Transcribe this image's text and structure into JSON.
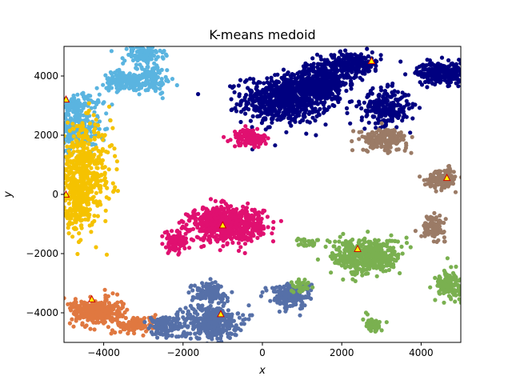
{
  "chart_data": {
    "type": "scatter",
    "title": "K-means medoid",
    "xlabel": "x",
    "ylabel": "y",
    "xlim": [
      -5000,
      5000
    ],
    "ylim": [
      -5000,
      5000
    ],
    "xticks": [
      -4000,
      -2000,
      0,
      2000,
      4000
    ],
    "yticks": [
      -4000,
      -2000,
      0,
      2000,
      4000
    ],
    "grid": false,
    "legend": "none",
    "marker_color": "#ffff00",
    "marker_edge": "#cc0000",
    "clusters": [
      {
        "color": "#000080",
        "blobs": [
          [
            600,
            3200,
            550,
            400,
            700
          ],
          [
            1450,
            3750,
            350,
            280,
            350
          ],
          [
            2200,
            4400,
            400,
            200,
            250
          ],
          [
            3100,
            2950,
            300,
            300,
            250
          ],
          [
            4500,
            4100,
            300,
            180,
            250
          ]
        ],
        "medoid": [
          2750,
          4500
        ]
      },
      {
        "color": "#5ab4e0",
        "blobs": [
          [
            -4700,
            2100,
            300,
            350,
            220
          ],
          [
            -3500,
            3850,
            250,
            150,
            150
          ],
          [
            -2800,
            3900,
            250,
            250,
            120
          ],
          [
            -3000,
            4750,
            250,
            200,
            120
          ],
          [
            -4700,
            3000,
            300,
            200,
            120
          ]
        ],
        "medoid": [
          -4950,
          3200
        ]
      },
      {
        "color": "#f5c200",
        "blobs": [
          [
            -4500,
            700,
            350,
            800,
            500
          ],
          [
            -4700,
            -300,
            200,
            500,
            150
          ]
        ],
        "medoid": [
          -4950,
          -10
        ]
      },
      {
        "color": "#e01070",
        "blobs": [
          [
            -900,
            -1000,
            450,
            280,
            700
          ],
          [
            -2200,
            -1600,
            140,
            150,
            100
          ],
          [
            -300,
            1900,
            220,
            150,
            120
          ]
        ],
        "medoid": [
          -1000,
          -1050
        ]
      },
      {
        "color": "#9b7b66",
        "blobs": [
          [
            3050,
            1850,
            300,
            180,
            180
          ],
          [
            4550,
            550,
            200,
            160,
            120
          ],
          [
            4300,
            -1100,
            150,
            180,
            100
          ]
        ],
        "medoid": [
          4650,
          550
        ]
      },
      {
        "color": "#e07840",
        "blobs": [
          [
            -4200,
            -3950,
            320,
            220,
            300
          ],
          [
            -3200,
            -4400,
            250,
            150,
            120
          ]
        ],
        "medoid": [
          -4300,
          -3550
        ]
      },
      {
        "color": "#5670a8",
        "blobs": [
          [
            -1300,
            -4300,
            350,
            300,
            350
          ],
          [
            -1350,
            -3300,
            220,
            150,
            120
          ],
          [
            -2500,
            -4450,
            220,
            200,
            110
          ],
          [
            700,
            -3400,
            250,
            200,
            200
          ]
        ],
        "medoid": [
          -1050,
          -4050
        ]
      },
      {
        "color": "#7ab050",
        "blobs": [
          [
            2650,
            -2100,
            420,
            300,
            450
          ],
          [
            4750,
            -3100,
            200,
            250,
            130
          ],
          [
            2750,
            -4400,
            120,
            120,
            50
          ],
          [
            1200,
            -1600,
            150,
            80,
            30
          ],
          [
            950,
            -3100,
            100,
            120,
            30
          ]
        ],
        "medoid": [
          2400,
          -1850
        ]
      }
    ]
  }
}
